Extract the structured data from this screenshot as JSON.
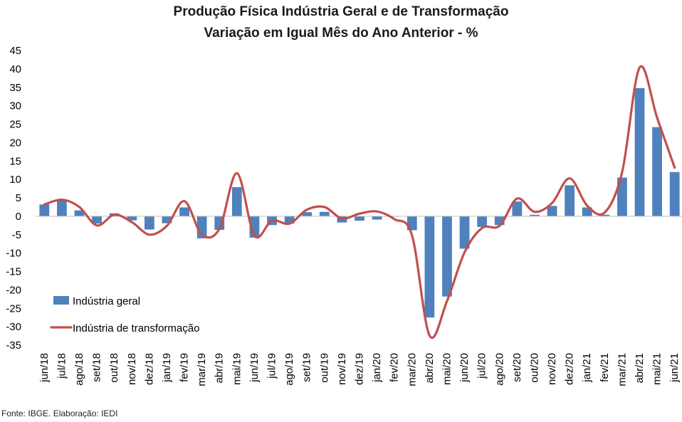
{
  "chart_data": {
    "type": "bar",
    "title": "Produção Física Indústria Geral e de Transformação",
    "subtitle": "Variação em Igual Mês do Ano Anterior - %",
    "xlabel": "",
    "ylabel": "",
    "ylim": [
      -35,
      45
    ],
    "yticks": [
      45,
      40,
      35,
      30,
      25,
      20,
      15,
      10,
      5,
      0,
      -5,
      -10,
      -15,
      -20,
      -25,
      -30,
      -35
    ],
    "grid": false,
    "legend_position": "bottom-left",
    "categories": [
      "jun/18",
      "jul/18",
      "ago/18",
      "set/18",
      "out/18",
      "nov/18",
      "dez/18",
      "jan/19",
      "fev/19",
      "mar/19",
      "abr/19",
      "mai/19",
      "jun/19",
      "jul/19",
      "ago/19",
      "set/19",
      "out/19",
      "nov/19",
      "dez/19",
      "jan/20",
      "fev/20",
      "mar/20",
      "abr/20",
      "mai/20",
      "jun/20",
      "jul/20",
      "ago/20",
      "set/20",
      "out/20",
      "nov/20",
      "dez/20",
      "jan/21",
      "fev/21",
      "mar/21",
      "abr/21",
      "mai/21",
      "jun/21"
    ],
    "series": [
      {
        "name": "Indústria geral",
        "kind": "bar",
        "color": "#4f81bd",
        "values": [
          3.2,
          4.3,
          1.6,
          -2.0,
          0.8,
          -1.1,
          -3.6,
          -1.9,
          2.4,
          -6.0,
          -3.7,
          7.9,
          -5.8,
          -2.4,
          -2.0,
          1.1,
          1.2,
          -1.7,
          -1.2,
          -0.9,
          0.0,
          -3.8,
          -27.5,
          -21.8,
          -8.8,
          -2.9,
          -2.4,
          4.0,
          0.4,
          2.8,
          8.4,
          2.4,
          0.4,
          10.5,
          34.8,
          24.2,
          12.0
        ]
      },
      {
        "name": "Indústria de transformação",
        "kind": "line",
        "color": "#c0504d",
        "values": [
          3.2,
          4.5,
          2.5,
          -2.5,
          0.4,
          -1.6,
          -5.0,
          -2.6,
          4.1,
          -5.0,
          -3.4,
          11.7,
          -5.3,
          -1.2,
          -2.0,
          1.8,
          2.5,
          -0.6,
          0.7,
          1.3,
          -0.8,
          -5.2,
          -32.4,
          -23.0,
          -9.8,
          -3.2,
          -2.6,
          4.8,
          1.2,
          3.6,
          10.3,
          2.9,
          1.0,
          12.0,
          40.4,
          26.7,
          13.2
        ]
      }
    ]
  },
  "source": "Fonte: IBGE. Elaboração: IEDI"
}
